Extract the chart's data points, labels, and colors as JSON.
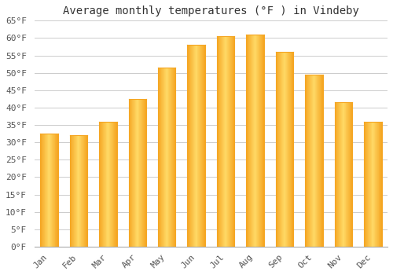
{
  "title": "Average monthly temperatures (°F ) in Vindeby",
  "months": [
    "Jan",
    "Feb",
    "Mar",
    "Apr",
    "May",
    "Jun",
    "Jul",
    "Aug",
    "Sep",
    "Oct",
    "Nov",
    "Dec"
  ],
  "values": [
    32.5,
    32.0,
    36.0,
    42.5,
    51.5,
    58.0,
    60.5,
    61.0,
    56.0,
    49.5,
    41.5,
    36.0
  ],
  "bar_color_light": "#FFD966",
  "bar_color_dark": "#F5A623",
  "background_color": "#ffffff",
  "grid_color": "#cccccc",
  "ylim": [
    0,
    65
  ],
  "yticks": [
    0,
    5,
    10,
    15,
    20,
    25,
    30,
    35,
    40,
    45,
    50,
    55,
    60,
    65
  ],
  "title_fontsize": 10,
  "tick_fontsize": 8,
  "title_font": "monospace",
  "tick_font": "monospace",
  "bar_width": 0.6,
  "figsize": [
    5.0,
    3.5
  ],
  "dpi": 100
}
